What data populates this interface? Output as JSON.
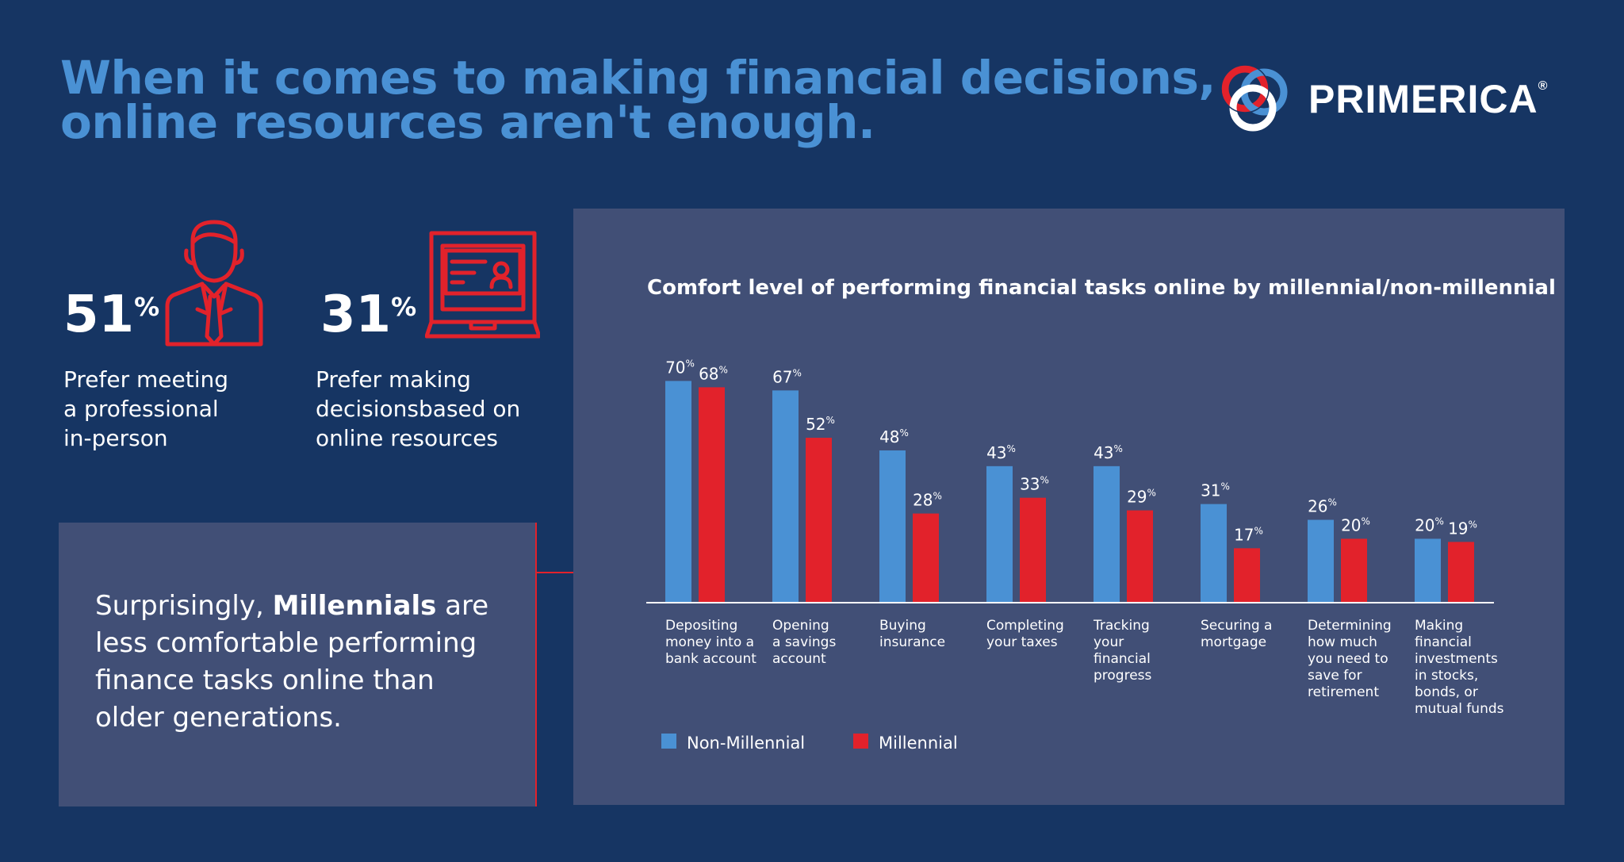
{
  "headline": {
    "line1": "When it comes to making financial decisions,",
    "line2": "online resources aren't enough."
  },
  "logo": {
    "word": "PRIMERICA",
    "mark": "®"
  },
  "stats": [
    {
      "value": "51",
      "unit": "%",
      "lines": [
        "Prefer meeting",
        "a professional",
        "in-person"
      ],
      "icon": "businessman-icon"
    },
    {
      "value": "31",
      "unit": "%",
      "lines": [
        "Prefer making",
        "decisionsbased on",
        "online resources"
      ],
      "icon": "laptop-profile-icon"
    }
  ],
  "callout": {
    "before": "Surprisingly, ",
    "bold": "Millennials",
    "line1_after": " are",
    "line2": "less comfortable performing",
    "line3": "finance tasks online than",
    "line4": "older generations."
  },
  "colors": {
    "background": "#163563",
    "panel": "#414f76",
    "accent_blue": "#4a91d4",
    "accent_red": "#e2222b"
  },
  "chart_data": {
    "type": "bar",
    "title": "Comfort level of performing financial tasks online by millennial/non-millennial",
    "categories": [
      "Depositing money into a bank account",
      "Opening a savings account",
      "Buying insurance",
      "Completing your taxes",
      "Tracking your financial progress",
      "Securing a mortgage",
      "Determining how much you need to save for retirement",
      "Making financial investments in stocks, bonds, or mutual funds"
    ],
    "category_lines": [
      [
        "Depositing",
        "money into a",
        "bank account"
      ],
      [
        "Opening",
        "a savings",
        "account"
      ],
      [
        "Buying",
        "insurance"
      ],
      [
        "Completing",
        "your taxes"
      ],
      [
        "Tracking",
        "your",
        "financial",
        "progress"
      ],
      [
        "Securing a",
        "mortgage"
      ],
      [
        "Determining",
        "how much",
        "you need to",
        "save for",
        "retirement"
      ],
      [
        "Making",
        "financial",
        "investments",
        "in stocks,",
        "bonds, or",
        "mutual funds"
      ]
    ],
    "series": [
      {
        "name": "Non-Millennial",
        "color": "#4a91d4",
        "values": [
          70,
          67,
          48,
          43,
          43,
          31,
          26,
          20
        ]
      },
      {
        "name": "Millennial",
        "color": "#e2222b",
        "values": [
          68,
          52,
          28,
          33,
          29,
          17,
          20,
          19
        ]
      }
    ],
    "value_suffix": "%",
    "ylim": [
      0,
      100
    ],
    "grid": false,
    "legend_position": "bottom-left"
  }
}
